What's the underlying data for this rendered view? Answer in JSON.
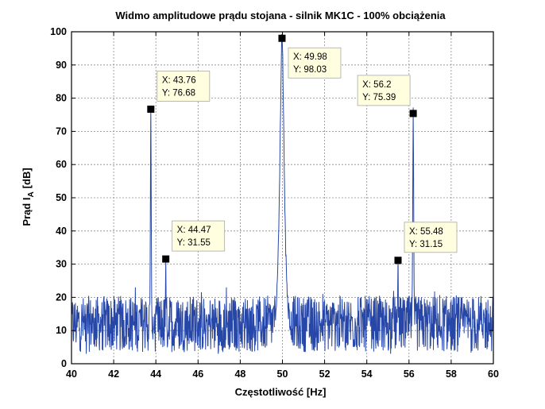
{
  "chart_data": {
    "type": "line",
    "title": "Widmo amplitudowe prądu stojana - silnik MK1C - 100% obciążenia",
    "xlabel": "Częstotliwość [Hz]",
    "ylabel": "Prąd I",
    "ylabel_subscript": "A",
    "ylabel_unit": "[dB]",
    "xlim": [
      40,
      60
    ],
    "ylim": [
      0,
      100
    ],
    "xticks": [
      40,
      42,
      44,
      46,
      48,
      50,
      52,
      54,
      56,
      58,
      60
    ],
    "yticks": [
      0,
      10,
      20,
      30,
      40,
      50,
      60,
      70,
      80,
      90,
      100
    ],
    "grid": true,
    "series_color": "#2747a8",
    "noise_floor": {
      "min": 3,
      "max": 23,
      "typical": 12
    },
    "peaks": [
      {
        "x": 43.76,
        "y": 76.68,
        "width": 0.025
      },
      {
        "x": 44.47,
        "y": 31.55,
        "width": 0.02
      },
      {
        "x": 49.98,
        "y": 98.03,
        "width": 0.13
      },
      {
        "x": 55.48,
        "y": 31.15,
        "width": 0.02
      },
      {
        "x": 56.2,
        "y": 75.39,
        "width": 0.03
      }
    ],
    "datatips": [
      {
        "x": 43.76,
        "y": 76.68,
        "x_label": "X: 43.76",
        "y_label": "Y: 76.68",
        "placement": "upper-right"
      },
      {
        "x": 44.47,
        "y": 31.55,
        "x_label": "X: 44.47",
        "y_label": "Y: 31.55",
        "placement": "upper-right"
      },
      {
        "x": 49.98,
        "y": 98.03,
        "x_label": "X: 49.98",
        "y_label": "Y: 98.03",
        "placement": "lower-right"
      },
      {
        "x": 55.48,
        "y": 31.15,
        "x_label": "X: 55.48",
        "y_label": "Y: 31.15",
        "placement": "upper-right"
      },
      {
        "x": 56.2,
        "y": 75.39,
        "x_label": "X: 56.2",
        "y_label": "Y: 75.39",
        "placement": "upper-left"
      }
    ]
  }
}
